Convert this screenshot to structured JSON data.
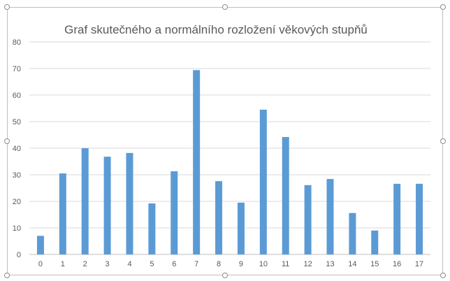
{
  "chart_data": {
    "type": "bar",
    "title": "Graf skutečného a normálního rozložení věkových stupňů",
    "xlabel": "",
    "ylabel": "",
    "categories": [
      "0",
      "1",
      "2",
      "3",
      "4",
      "5",
      "6",
      "7",
      "8",
      "9",
      "10",
      "11",
      "12",
      "13",
      "14",
      "15",
      "16",
      "17"
    ],
    "values": [
      7,
      30.5,
      40,
      36.8,
      38.2,
      19.2,
      31.3,
      69.4,
      27.6,
      19.5,
      54.5,
      44.2,
      26.1,
      28.4,
      15.6,
      9,
      26.6,
      26.6
    ],
    "ylim": [
      0,
      80
    ],
    "yticks": [
      0,
      10,
      20,
      30,
      40,
      50,
      60,
      70,
      80
    ],
    "grid": true,
    "legend": "none",
    "bar_color": "#5b9bd5",
    "grid_color": "#d9d9d9",
    "axis_color": "#bfbfbf",
    "tick_label_color": "#595959",
    "title_color": "#595959"
  }
}
